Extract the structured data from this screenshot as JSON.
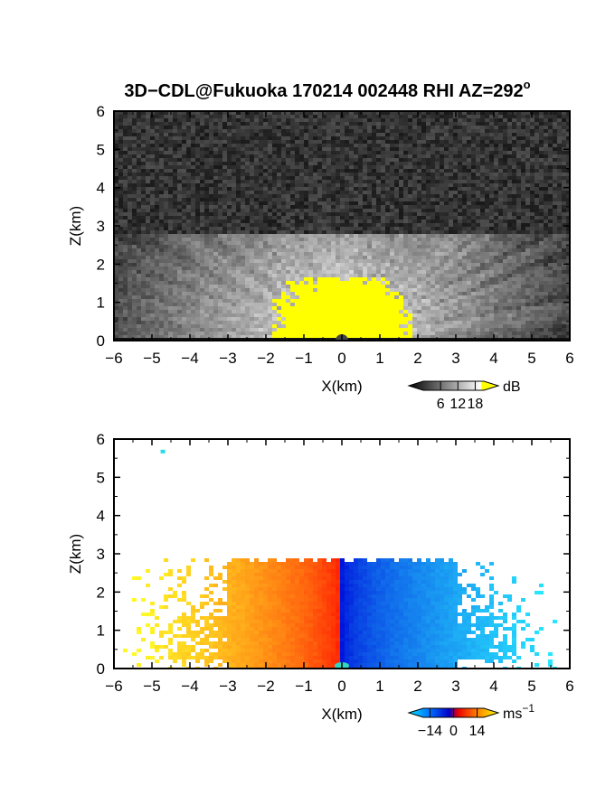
{
  "title": "3D−CDL@Fukuoka 170214 002448 RHI AZ=292",
  "title_sup": "o",
  "chart_data": [
    {
      "type": "heatmap",
      "name": "reflectivity",
      "xlabel": "X(km)",
      "ylabel": "Z(km)",
      "xlim": [
        -6,
        6
      ],
      "ylim": [
        0,
        6
      ],
      "x_ticks": [
        "−6",
        "−5",
        "−4",
        "−3",
        "−2",
        "−1",
        "0",
        "1",
        "2",
        "3",
        "4",
        "5",
        "6"
      ],
      "y_ticks": [
        "0",
        "1",
        "2",
        "3",
        "4",
        "5",
        "6"
      ],
      "colorbar": {
        "unit": "dB",
        "tick_labels": [
          "6",
          "12",
          "18"
        ],
        "tick_values": [
          6,
          12,
          18
        ],
        "range": [
          0,
          21
        ],
        "colors": [
          "#000000",
          "#ffffff",
          "#ffff00"
        ]
      },
      "features": {
        "signal_top_km": 2.8,
        "strong_echo_top_km": 1.7,
        "strong_echo_x_range_km": [
          -1.8,
          1.9
        ],
        "noise_region_above_km": 2.8
      }
    },
    {
      "type": "heatmap",
      "name": "doppler-velocity",
      "xlabel": "X(km)",
      "ylabel": "Z(km)",
      "xlim": [
        -6,
        6
      ],
      "ylim": [
        0,
        6
      ],
      "x_ticks": [
        "−6",
        "−5",
        "−4",
        "−3",
        "−2",
        "−1",
        "0",
        "1",
        "2",
        "3",
        "4",
        "5",
        "6"
      ],
      "y_ticks": [
        "0",
        "1",
        "2",
        "3",
        "4",
        "5",
        "6"
      ],
      "colorbar": {
        "unit": "ms",
        "unit_sup": "−1",
        "tick_labels": [
          "−14",
          "0",
          "14"
        ],
        "tick_values": [
          -14,
          0,
          14
        ],
        "range": [
          -18,
          18
        ],
        "colors": [
          "#00e5ff",
          "#0055ff",
          "#0000dd",
          "#ff0000",
          "#ff8800",
          "#ffff00"
        ]
      },
      "features": {
        "signal_top_km": 2.85,
        "negative_x_sign": "positive",
        "positive_x_sign": "negative",
        "isolated_point_km": [
          -4.7,
          5.65
        ]
      }
    }
  ]
}
